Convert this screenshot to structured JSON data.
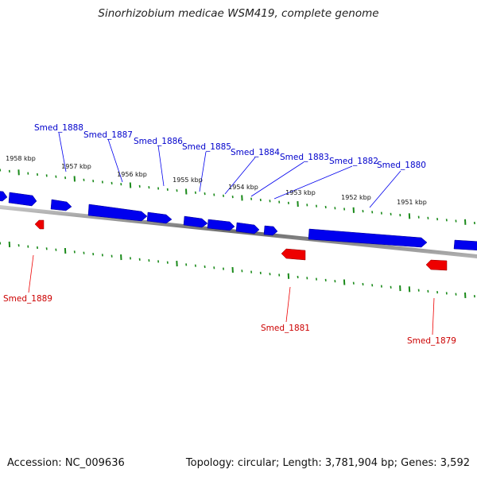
{
  "header": {
    "title": "Sinorhizobium medicae WSM419, complete genome"
  },
  "footer": {
    "accession": "Accession: NC_009636",
    "summary": "Topology: circular; Length: 3,781,904 bp; Genes: 3,592"
  },
  "colors": {
    "forward": "#0000ee",
    "reverse": "#ee0000",
    "ticks": "#1a8a1a",
    "backbone": "#808080"
  },
  "scale_labels": [
    "1958 kbp",
    "1957 kbp",
    "1956 kbp",
    "1955 kbp",
    "1954 kbp",
    "1953 kbp",
    "1952 kbp",
    "1951 kbp"
  ],
  "genes": {
    "forward": [
      "Smed_1888",
      "Smed_1887",
      "Smed_1886",
      "Smed_1885",
      "Smed_1884",
      "Smed_1883",
      "Smed_1882",
      "Smed_1880"
    ],
    "reverse": [
      "Smed_1889",
      "Smed_1881",
      "Smed_1879"
    ]
  }
}
